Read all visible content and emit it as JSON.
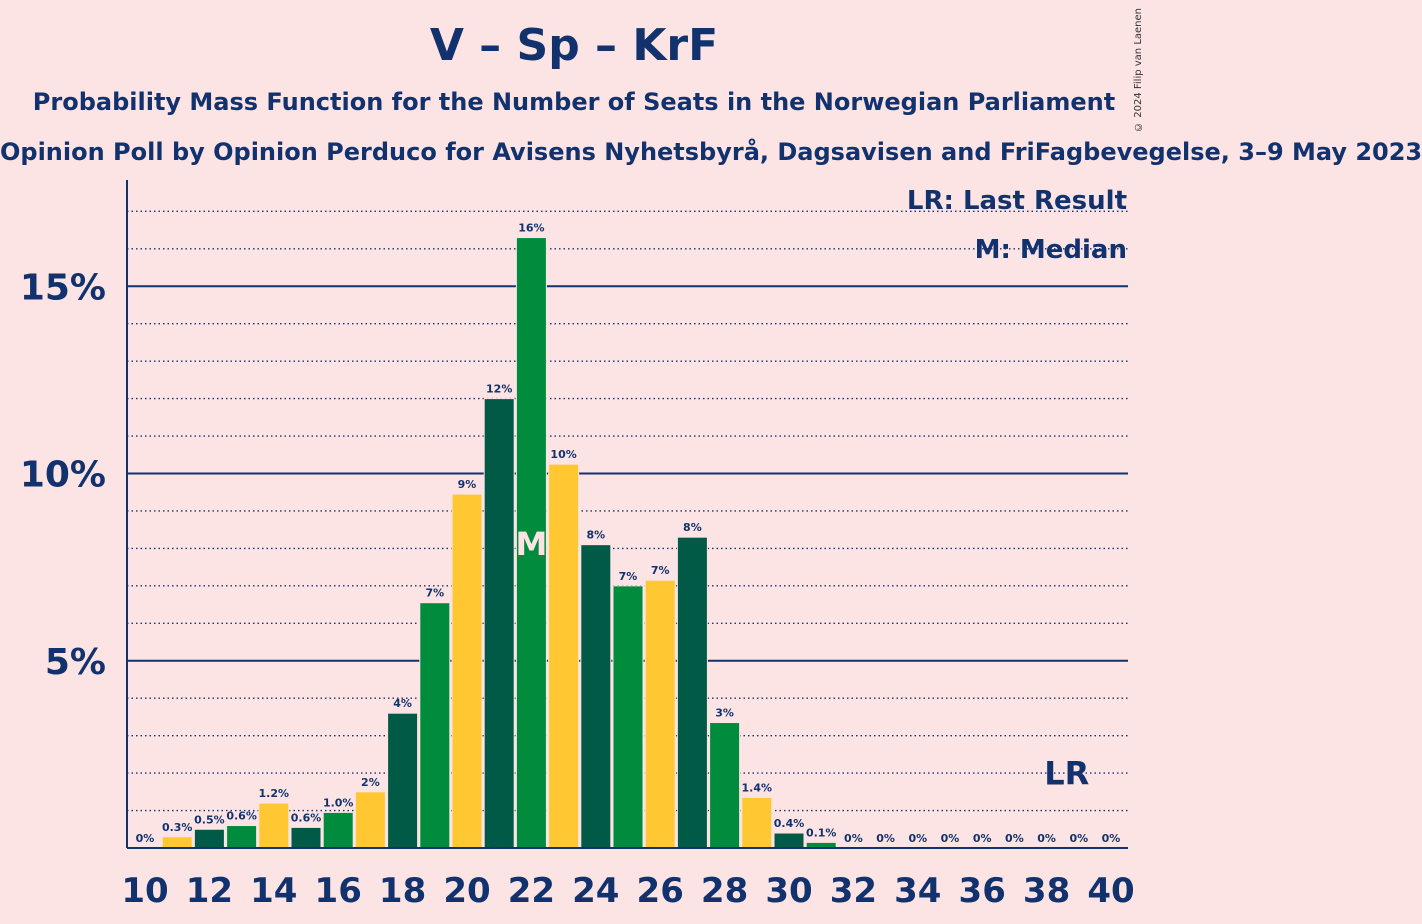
{
  "title": "V – Sp – KrF",
  "subtitle": "Probability Mass Function for the Number of Seats in the Norwegian Parliament",
  "subsubtitle": "Opinion Poll by Opinion Perduco for Avisens Nyhetsbyrå, Dagsavisen and FriFagbevegelse, 3–9 May 2023",
  "copyright": "© 2024 Filip van Laenen",
  "legend": {
    "last_result": "LR: Last Result",
    "median": "M: Median"
  },
  "colors": {
    "background": "#fce4e4",
    "text": "#12326e",
    "dark_green": "#005a46",
    "green": "#008c3c",
    "yellow": "#ffc832"
  },
  "chart_data": {
    "type": "bar",
    "x": [
      10,
      11,
      12,
      13,
      14,
      15,
      16,
      17,
      18,
      19,
      20,
      21,
      22,
      23,
      24,
      25,
      26,
      27,
      28,
      29,
      30,
      31,
      32,
      33,
      34,
      35,
      36,
      37,
      38,
      39,
      40
    ],
    "values": [
      0,
      0.3,
      0.5,
      0.6,
      1.2,
      0.55,
      0.95,
      1.5,
      3.6,
      6.55,
      9.45,
      12.0,
      16.3,
      10.25,
      8.1,
      7.0,
      7.15,
      8.3,
      3.35,
      1.35,
      0.4,
      0.15,
      0,
      0,
      0,
      0,
      0,
      0,
      0,
      0,
      0
    ],
    "labels": [
      "0%",
      "0.3%",
      "0.5%",
      "0.6%",
      "1.2%",
      "0.6%",
      "1.0%",
      "2%",
      "4%",
      "7%",
      "9%",
      "12%",
      "16%",
      "10%",
      "8%",
      "7%",
      "7%",
      "8%",
      "3%",
      "1.4%",
      "0.4%",
      "0.1%",
      "0%",
      "0%",
      "0%",
      "0%",
      "0%",
      "0%",
      "0%",
      "0%",
      "0%"
    ],
    "bar_colors": [
      "#008c3c",
      "#ffc832",
      "#005a46",
      "#008c3c",
      "#ffc832",
      "#005a46",
      "#008c3c",
      "#ffc832",
      "#005a46",
      "#008c3c",
      "#ffc832",
      "#005a46",
      "#008c3c",
      "#ffc832",
      "#005a46",
      "#008c3c",
      "#ffc832",
      "#005a46",
      "#008c3c",
      "#ffc832",
      "#005a46",
      "#008c3c",
      "#ffc832",
      "#005a46",
      "#008c3c",
      "#ffc832",
      "#005a46",
      "#008c3c",
      "#ffc832",
      "#005a46",
      "#008c3c"
    ],
    "xticks": [
      10,
      12,
      14,
      16,
      18,
      20,
      22,
      24,
      26,
      28,
      30,
      32,
      34,
      36,
      38,
      40
    ],
    "yticks": [
      {
        "value": 5,
        "label": "5%"
      },
      {
        "value": 10,
        "label": "10%"
      },
      {
        "value": 15,
        "label": "15%"
      }
    ],
    "ylim": [
      0,
      17.5
    ],
    "median": 22,
    "median_label": "M",
    "last_result": 39,
    "last_result_label": "LR"
  }
}
